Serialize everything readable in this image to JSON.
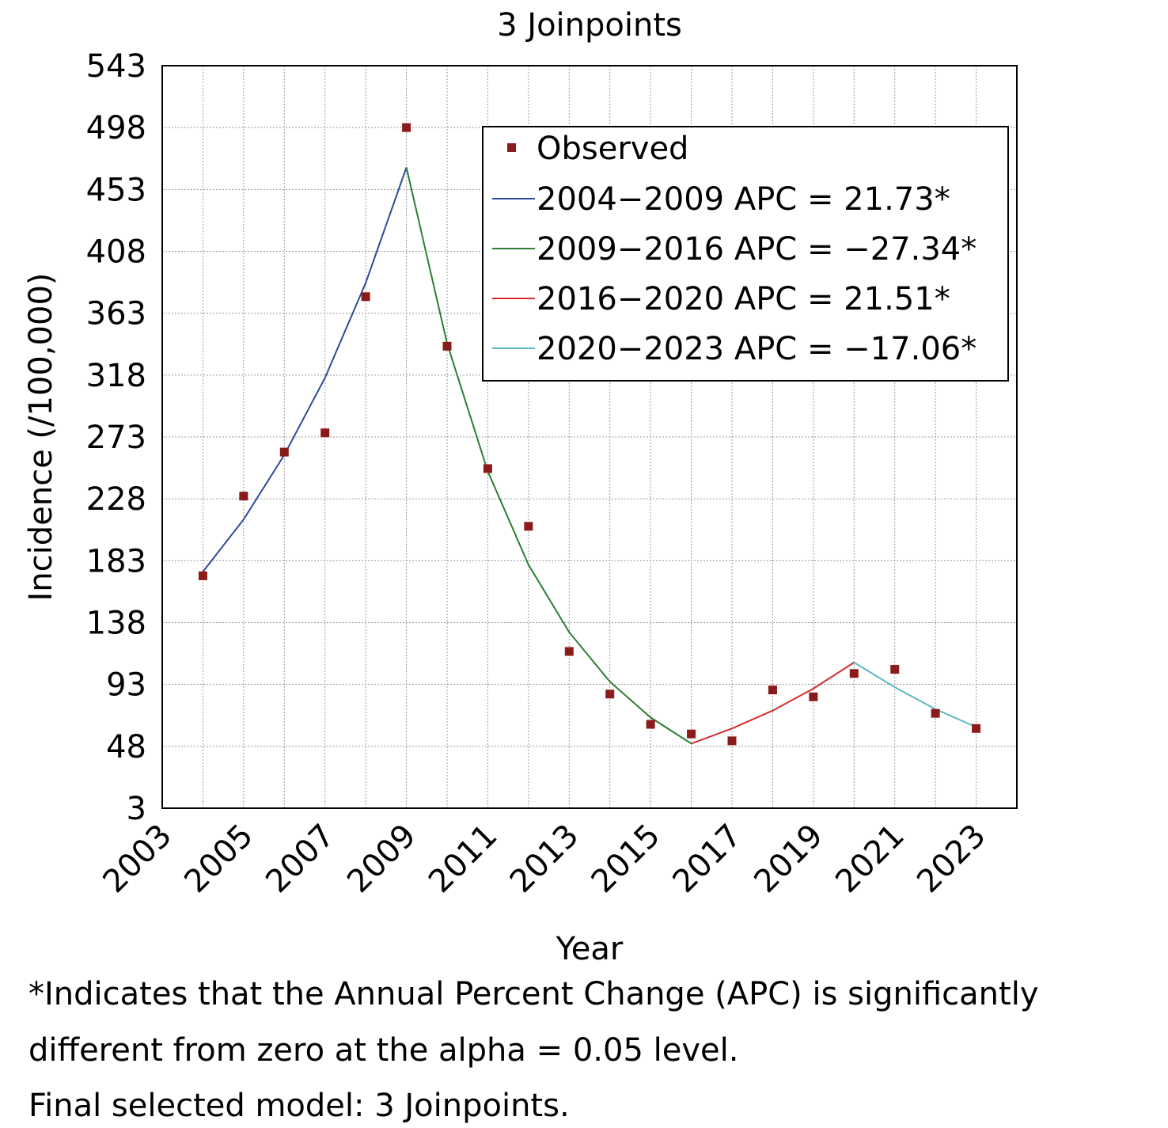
{
  "chart_data": {
    "type": "line",
    "title": "3 Joinpoints",
    "xlabel": "Year",
    "ylabel": "Incidence (/100,000)",
    "xlim": [
      2003,
      2024
    ],
    "ylim": [
      3,
      543
    ],
    "x_ticks": [
      2003,
      2005,
      2007,
      2009,
      2011,
      2013,
      2015,
      2017,
      2019,
      2021,
      2023
    ],
    "y_ticks": [
      3,
      48,
      93,
      138,
      183,
      228,
      273,
      318,
      363,
      408,
      453,
      498,
      543
    ],
    "grid": true,
    "legend_position": "top-right",
    "observed": {
      "name": "Observed",
      "color": "#8b1a1a",
      "x": [
        2004,
        2005,
        2006,
        2007,
        2008,
        2009,
        2010,
        2011,
        2012,
        2013,
        2014,
        2015,
        2016,
        2017,
        2018,
        2019,
        2020,
        2021,
        2022,
        2023
      ],
      "y": [
        172,
        230,
        262,
        276,
        375,
        498,
        339,
        250,
        208,
        117,
        86,
        64,
        57,
        52,
        89,
        84,
        101,
        104,
        72,
        61
      ]
    },
    "series": [
      {
        "name": "2004−2009 APC = 21.73*",
        "color": "#2e4a9a",
        "x": [
          2004,
          2005,
          2006,
          2007,
          2008,
          2009
        ],
        "y": [
          175,
          213,
          260,
          316,
          385,
          469
        ]
      },
      {
        "name": "2009−2016 APC = −27.34*",
        "color": "#2e7d32",
        "x": [
          2009,
          2010,
          2011,
          2012,
          2013,
          2014,
          2015,
          2016
        ],
        "y": [
          469,
          341,
          248,
          180,
          131,
          95,
          69,
          50
        ]
      },
      {
        "name": "2016−2020 APC = 21.51*",
        "color": "#d32f2f",
        "x": [
          2016,
          2017,
          2018,
          2019,
          2020
        ],
        "y": [
          50,
          61,
          74,
          90,
          109
        ]
      },
      {
        "name": "2020−2023 APC = −17.06*",
        "color": "#5bb8c4",
        "x": [
          2020,
          2021,
          2022,
          2023
        ],
        "y": [
          109,
          91,
          75,
          62
        ]
      }
    ]
  },
  "footnotes": {
    "line1": "*Indicates that the Annual Percent Change (APC) is significantly",
    "line2": "different from zero at the alpha = 0.05 level.",
    "line3": "Final selected model: 3 Joinpoints."
  }
}
